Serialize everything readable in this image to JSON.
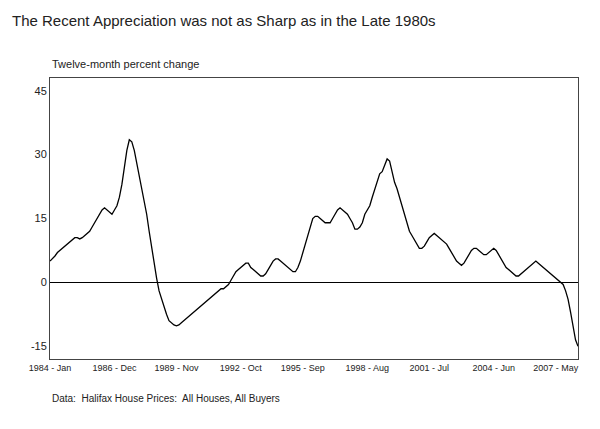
{
  "chart_data": {
    "type": "line",
    "title": "The Recent Appreciation was not as Sharp as in the Late 1980s",
    "subtitle": "Twelve-month percent change",
    "source": "Data:  Halifax House Prices:  All Houses, All Buyers",
    "color": "#000000",
    "grid": false,
    "ylim": [
      -18,
      48
    ],
    "yticks": [
      45,
      30,
      15,
      0,
      -15
    ],
    "categories": [
      "1984 - Jan",
      null,
      null,
      null,
      null,
      null,
      null,
      null,
      null,
      null,
      null,
      null,
      null,
      null,
      null,
      null,
      null,
      null,
      null,
      null,
      null,
      null,
      null,
      null,
      null,
      null,
      "1986 - Dec",
      null,
      null,
      null,
      null,
      null,
      null,
      null,
      null,
      null,
      null,
      null,
      null,
      null,
      null,
      null,
      null,
      null,
      null,
      null,
      null,
      null,
      null,
      null,
      null,
      "1989 - Nov",
      null,
      null,
      null,
      null,
      null,
      null,
      null,
      null,
      null,
      null,
      null,
      null,
      null,
      null,
      null,
      null,
      null,
      null,
      null,
      null,
      null,
      null,
      null,
      null,
      null,
      "1992 - Oct",
      null,
      null,
      null,
      null,
      null,
      null,
      null,
      null,
      null,
      null,
      null,
      null,
      null,
      null,
      null,
      null,
      null,
      null,
      null,
      null,
      null,
      null,
      null,
      null,
      "1995 - Sep",
      null,
      null,
      null,
      null,
      null,
      null,
      null,
      null,
      null,
      null,
      null,
      null,
      null,
      null,
      null,
      null,
      null,
      null,
      null,
      null,
      null,
      null,
      null,
      null,
      null,
      "1998 - Aug",
      null,
      null,
      null,
      null,
      null,
      null,
      null,
      null,
      null,
      null,
      null,
      null,
      null,
      null,
      null,
      null,
      null,
      null,
      null,
      null,
      null,
      null,
      null,
      null,
      "2001 - Jul",
      null,
      null,
      null,
      null,
      null,
      null,
      null,
      null,
      null,
      null,
      null,
      null,
      null,
      null,
      null,
      null,
      null,
      null,
      null,
      null,
      null,
      null,
      null,
      null,
      null,
      "2004 - Jun",
      null,
      null,
      null,
      null,
      null,
      null,
      null,
      null,
      null,
      null,
      null,
      null,
      null,
      null,
      null,
      null,
      null,
      null,
      null,
      null,
      null,
      null,
      null,
      null,
      "2007 - May",
      null,
      null,
      null,
      null,
      null,
      null,
      null,
      null,
      null
    ],
    "values": [
      5.0,
      5.5,
      6.2,
      7.0,
      7.5,
      8.0,
      8.5,
      9.0,
      9.5,
      10.0,
      10.5,
      10.5,
      10.2,
      10.5,
      11.0,
      11.5,
      12.0,
      13.0,
      14.0,
      15.0,
      16.0,
      17.0,
      17.5,
      17.0,
      16.5,
      16.0,
      17.0,
      18.0,
      20.0,
      23.0,
      27.0,
      31.0,
      33.5,
      33.0,
      31.0,
      28.0,
      25.0,
      22.0,
      19.0,
      16.0,
      12.0,
      8.0,
      4.0,
      1.0,
      -2.0,
      -4.0,
      -6.0,
      -7.5,
      -9.0,
      -9.5,
      -10.0,
      -10.2,
      -10.0,
      -9.5,
      -9.0,
      -8.5,
      -8.0,
      -7.5,
      -7.0,
      -6.5,
      -6.0,
      -5.5,
      -5.0,
      -4.5,
      -4.0,
      -3.5,
      -3.0,
      -2.5,
      -2.0,
      -1.5,
      -1.5,
      -1.0,
      -0.5,
      0.5,
      1.5,
      2.5,
      3.0,
      3.5,
      4.0,
      4.5,
      4.5,
      3.5,
      3.0,
      2.5,
      2.0,
      1.5,
      1.5,
      2.0,
      3.0,
      4.0,
      5.0,
      5.5,
      5.5,
      5.0,
      4.5,
      4.0,
      3.5,
      3.0,
      2.5,
      2.5,
      3.5,
      5.0,
      7.0,
      9.0,
      11.0,
      13.0,
      15.0,
      15.5,
      15.5,
      15.0,
      14.5,
      14.0,
      14.0,
      14.0,
      15.0,
      16.0,
      17.0,
      17.5,
      17.0,
      16.5,
      16.0,
      15.0,
      14.0,
      12.5,
      12.5,
      13.0,
      14.0,
      16.0,
      17.0,
      18.0,
      20.0,
      22.0,
      24.0,
      25.5,
      26.0,
      27.5,
      29.0,
      28.5,
      26.0,
      23.5,
      22.0,
      20.0,
      18.0,
      15.5,
      13.5,
      12.0,
      11.0,
      10.0,
      9.0,
      8.0,
      8.0,
      8.5,
      9.5,
      10.5,
      11.0,
      11.5,
      11.0,
      10.5,
      10.0,
      9.5,
      9.0,
      8.0,
      7.0,
      6.0,
      5.0,
      4.5,
      4.0,
      4.5,
      5.5,
      6.5,
      7.5,
      8.0,
      8.0,
      7.5,
      7.0,
      6.5,
      6.5,
      7.0,
      7.5,
      8.0,
      7.5,
      6.5,
      5.5,
      4.5,
      3.5,
      3.0,
      2.5,
      2.0,
      1.5,
      1.5,
      2.0,
      2.5,
      3.0,
      3.5,
      4.0,
      4.5,
      5.0,
      4.5,
      4.0,
      3.5,
      3.0,
      2.5,
      2.0,
      1.5,
      1.0,
      0.5,
      0.0,
      -0.5,
      -2.0,
      -4.0,
      -7.0,
      -10.0,
      -13.5,
      -15.0
    ]
  }
}
